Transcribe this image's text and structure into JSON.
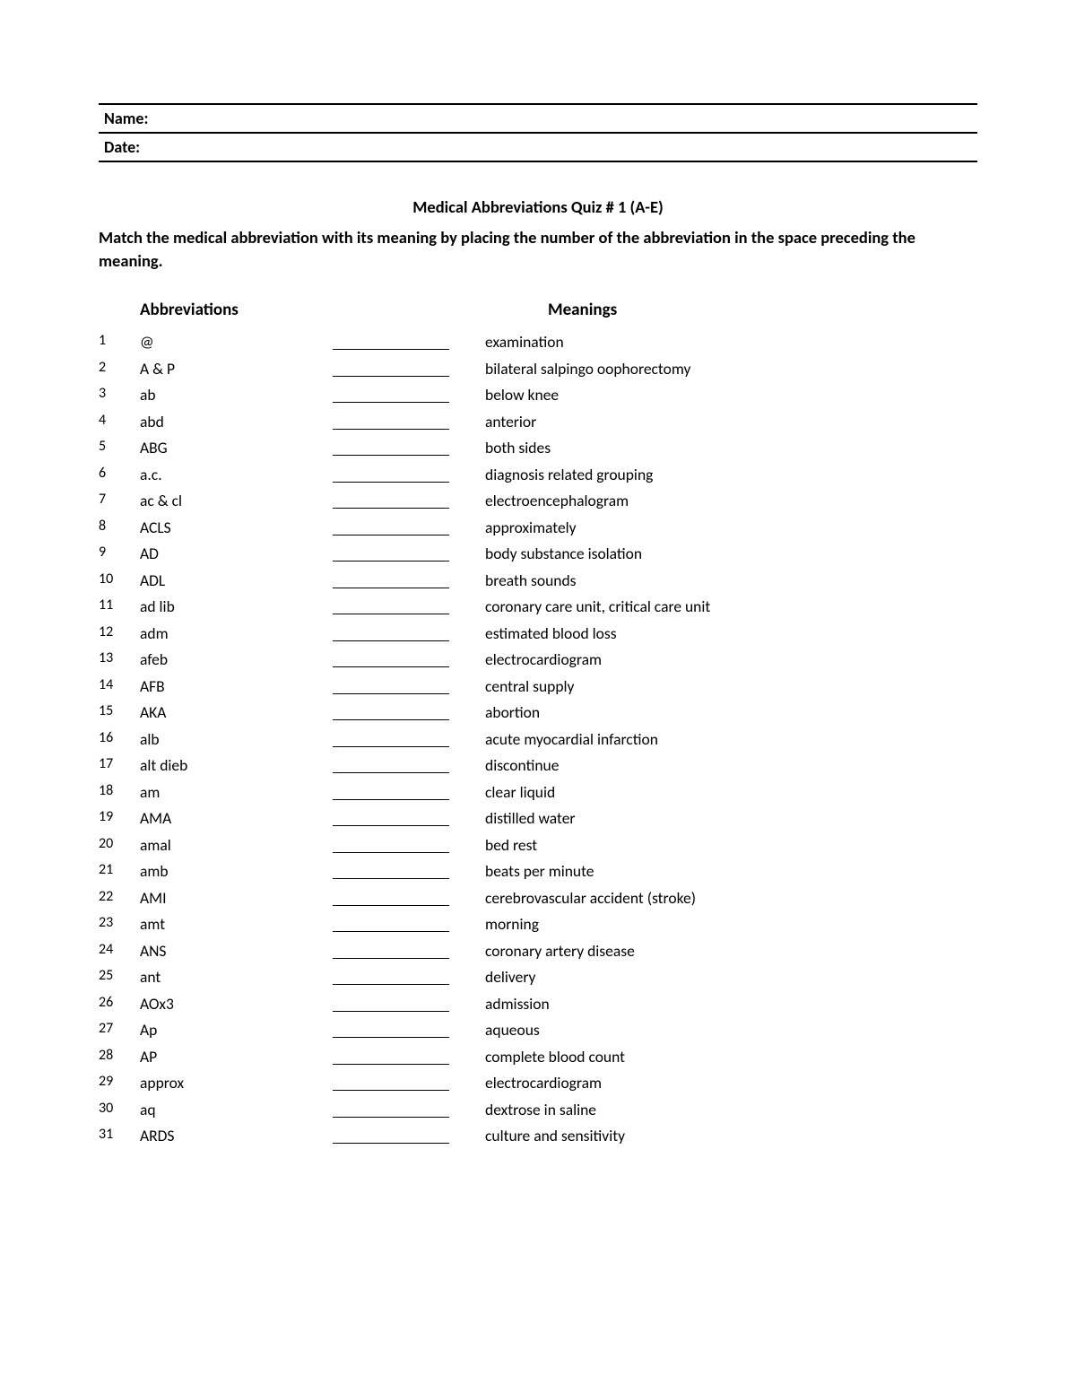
{
  "fields": {
    "name_label": "Name:",
    "date_label": "Date:"
  },
  "title": "Medical Abbreviations Quiz # 1 (A-E)",
  "instructions": "Match the medical abbreviation with its meaning by placing the number of the abbreviation in the space preceding the meaning.",
  "headers": {
    "abbr": "Abbreviations",
    "mean": "Meanings"
  },
  "rows": [
    {
      "n": "1",
      "abbr": "@",
      "mean": "examination"
    },
    {
      "n": "2",
      "abbr": "A & P",
      "mean": "bilateral salpingo oophorectomy"
    },
    {
      "n": "3",
      "abbr": "ab",
      "mean": "below knee"
    },
    {
      "n": "4",
      "abbr": "abd",
      "mean": "anterior"
    },
    {
      "n": "5",
      "abbr": "ABG",
      "mean": "both sides"
    },
    {
      "n": "6",
      "abbr": "a.c.",
      "mean": "diagnosis related grouping"
    },
    {
      "n": "7",
      "abbr": "ac & cl",
      "mean": "electroencephalogram"
    },
    {
      "n": "8",
      "abbr": "ACLS",
      "mean": "approximately"
    },
    {
      "n": "9",
      "abbr": "AD",
      "mean": "body substance isolation"
    },
    {
      "n": "10",
      "abbr": "ADL",
      "mean": "breath sounds"
    },
    {
      "n": "11",
      "abbr": "ad lib",
      "mean": "coronary care unit, critical care unit"
    },
    {
      "n": "12",
      "abbr": "adm",
      "mean": "estimated blood loss"
    },
    {
      "n": "13",
      "abbr": "afeb",
      "mean": "electrocardiogram"
    },
    {
      "n": "14",
      "abbr": "AFB",
      "mean": "central supply"
    },
    {
      "n": "15",
      "abbr": "AKA",
      "mean": "abortion"
    },
    {
      "n": "16",
      "abbr": "alb",
      "mean": "acute myocardial infarction"
    },
    {
      "n": "17",
      "abbr": "alt dieb",
      "mean": "discontinue"
    },
    {
      "n": "18",
      "abbr": "am",
      "mean": "clear liquid"
    },
    {
      "n": "19",
      "abbr": "AMA",
      "mean": "distilled water"
    },
    {
      "n": "20",
      "abbr": "amal",
      "mean": "bed rest"
    },
    {
      "n": "21",
      "abbr": "amb",
      "mean": "beats per minute"
    },
    {
      "n": "22",
      "abbr": "AMI",
      "mean": "cerebrovascular accident (stroke)"
    },
    {
      "n": "23",
      "abbr": "amt",
      "mean": "morning"
    },
    {
      "n": "24",
      "abbr": "ANS",
      "mean": "coronary artery disease"
    },
    {
      "n": "25",
      "abbr": "ant",
      "mean": "delivery"
    },
    {
      "n": "26",
      "abbr": "AOx3",
      "mean": "admission"
    },
    {
      "n": "27",
      "abbr": "Ap",
      "mean": "aqueous"
    },
    {
      "n": "28",
      "abbr": "AP",
      "mean": "complete blood count"
    },
    {
      "n": "29",
      "abbr": "approx",
      "mean": "electrocardiogram"
    },
    {
      "n": "30",
      "abbr": "aq",
      "mean": "dextrose in saline"
    },
    {
      "n": "31",
      "abbr": "ARDS",
      "mean": "culture and sensitivity"
    }
  ]
}
